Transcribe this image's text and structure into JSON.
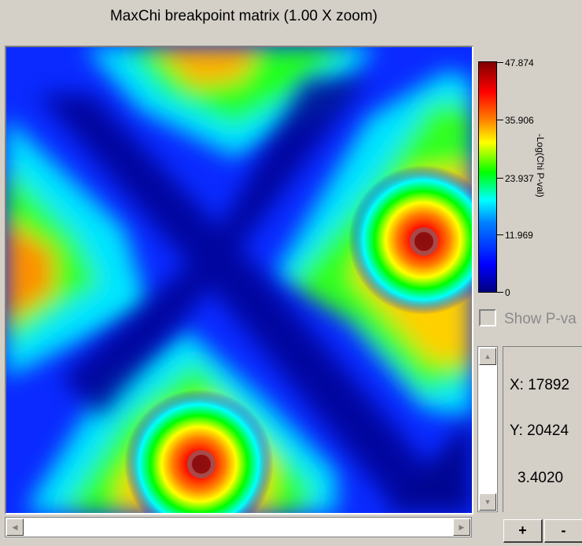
{
  "title": "MaxChi breakpoint matrix (1.00 X zoom)",
  "legend": {
    "axis_label": "-Log(Chi P-val)",
    "ticks": [
      "47.874",
      "35.906",
      "23.937",
      "11.969",
      "0"
    ],
    "colors": [
      "#7f0000",
      "#ff0000",
      "#ff7f00",
      "#ffff00",
      "#00ff00",
      "#00ffff",
      "#007fff",
      "#0000ff",
      "#00007f"
    ]
  },
  "show_pvalue": {
    "label": "Show P-va",
    "checked": false
  },
  "coordinates": {
    "x_label": "X: 17892",
    "y_label": "Y: 20424",
    "value": "3.4020"
  },
  "zoom_controls": {
    "plus": "+",
    "minus": "-"
  },
  "scrollbars": {
    "left_arrow": "◀",
    "right_arrow": "▶",
    "up_arrow": "▲",
    "down_arrow": "▼"
  }
}
